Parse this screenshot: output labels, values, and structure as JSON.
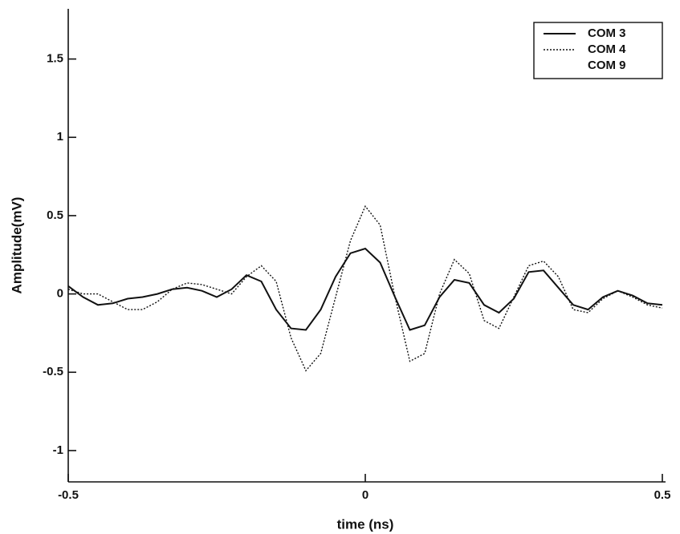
{
  "chart_data": {
    "type": "line",
    "x_label": "time (ns)",
    "y_label": "Amplitude(mV)",
    "x": [
      -0.5,
      -0.475,
      -0.45,
      -0.425,
      -0.4,
      -0.375,
      -0.35,
      -0.325,
      -0.3,
      -0.275,
      -0.25,
      -0.225,
      -0.2,
      -0.175,
      -0.15,
      -0.125,
      -0.1,
      -0.075,
      -0.05,
      -0.025,
      0,
      0.025,
      0.05,
      0.075,
      0.1,
      0.125,
      0.15,
      0.175,
      0.2,
      0.225,
      0.25,
      0.275,
      0.3,
      0.325,
      0.35,
      0.375,
      0.4,
      0.425,
      0.45,
      0.475,
      0.5
    ],
    "series": [
      {
        "name": "COM 3",
        "color": "#111111",
        "linestyle": "solid",
        "values": [
          0.05,
          -0.02,
          -0.07,
          -0.06,
          -0.03,
          -0.02,
          0.0,
          0.03,
          0.04,
          0.02,
          -0.02,
          0.03,
          0.12,
          0.08,
          -0.1,
          -0.22,
          -0.23,
          -0.1,
          0.11,
          0.26,
          0.29,
          0.2,
          -0.02,
          -0.23,
          -0.2,
          -0.02,
          0.09,
          0.07,
          -0.07,
          -0.12,
          -0.03,
          0.14,
          0.15,
          0.04,
          -0.07,
          -0.1,
          -0.02,
          0.02,
          -0.01,
          -0.06,
          -0.07
        ]
      },
      {
        "name": "COM 4",
        "color": "#111111",
        "linestyle": "dotted",
        "values": [
          0.03,
          0.0,
          0.0,
          -0.05,
          -0.1,
          -0.1,
          -0.05,
          0.03,
          0.07,
          0.06,
          0.03,
          0.0,
          0.11,
          0.18,
          0.08,
          -0.28,
          -0.49,
          -0.38,
          -0.02,
          0.34,
          0.56,
          0.44,
          -0.02,
          -0.43,
          -0.38,
          0.0,
          0.22,
          0.13,
          -0.17,
          -0.22,
          -0.02,
          0.18,
          0.21,
          0.11,
          -0.1,
          -0.12,
          -0.03,
          0.02,
          -0.02,
          -0.07,
          -0.09
        ]
      },
      {
        "name": "COM 9",
        "values": [
          null,
          null,
          null,
          null,
          null,
          null,
          null,
          null,
          null,
          null,
          null,
          null,
          null,
          null,
          null,
          null,
          null,
          null,
          null,
          null,
          null,
          null,
          null,
          null,
          null,
          null,
          null,
          null,
          null,
          null,
          null,
          null,
          null,
          null,
          null,
          null,
          null,
          null,
          null,
          null,
          null
        ]
      }
    ],
    "xlim": [
      -0.5,
      0.5
    ],
    "xticks": [
      -0.5,
      0,
      0.5
    ],
    "ylim": [
      -1.2,
      1.8
    ],
    "yticks": [
      -1,
      -0.5,
      0,
      0.5,
      1,
      1.5
    ],
    "grid": false,
    "legend": "upper right"
  }
}
